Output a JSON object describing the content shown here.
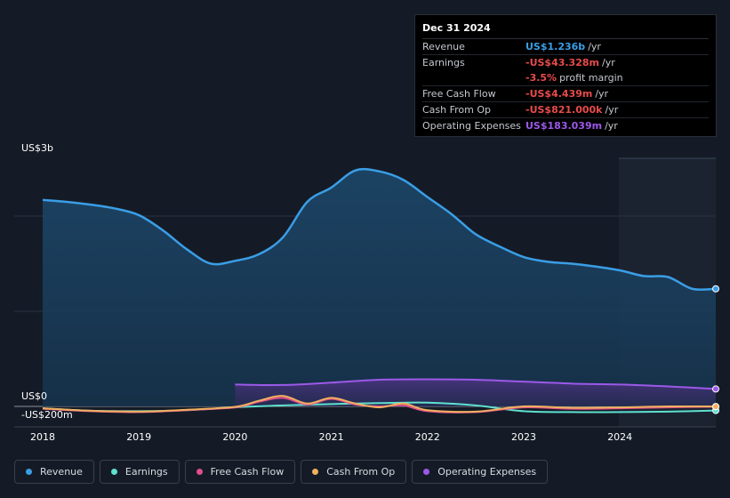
{
  "tooltip": {
    "date": "Dec 31 2024",
    "rows": [
      {
        "label": "Revenue",
        "value": "US$1.236b",
        "unit": "/yr",
        "color": "#3a9ee6"
      },
      {
        "label": "Earnings",
        "value": "-US$43.328m",
        "unit": "/yr",
        "color": "#e84b4b"
      },
      {
        "label": "",
        "value": "-3.5%",
        "unit": "profit margin",
        "color": "#e84b4b"
      },
      {
        "label": "Free Cash Flow",
        "value": "-US$4.439m",
        "unit": "/yr",
        "color": "#e84b4b"
      },
      {
        "label": "Cash From Op",
        "value": "-US$821.000k",
        "unit": "/yr",
        "color": "#e84b4b"
      },
      {
        "label": "Operating Expenses",
        "value": "US$183.039m",
        "unit": "/yr",
        "color": "#9b59e8"
      }
    ]
  },
  "axis": {
    "y_top_label": "US$3b",
    "y_zero_label": "US$0",
    "y_neg_label": "-US$200m"
  },
  "legend": [
    {
      "label": "Revenue",
      "color": "#3a9ee6"
    },
    {
      "label": "Earnings",
      "color": "#5fe0cf"
    },
    {
      "label": "Free Cash Flow",
      "color": "#e0508a"
    },
    {
      "label": "Cash From Op",
      "color": "#f0b060"
    },
    {
      "label": "Operating Expenses",
      "color": "#9b59e8"
    }
  ],
  "chart_data": {
    "type": "area",
    "x_ticks": [
      "2018",
      "2019",
      "2020",
      "2021",
      "2022",
      "2023",
      "2024"
    ],
    "y_unit": "US$ millions",
    "ylim": [
      -200,
      2600
    ],
    "grid": true,
    "series": [
      {
        "name": "Revenue",
        "color": "#3a9ee6",
        "x": [
          2018.0,
          2018.25,
          2018.5,
          2018.75,
          2019.0,
          2019.25,
          2019.5,
          2019.75,
          2020.0,
          2020.25,
          2020.5,
          2020.75,
          2021.0,
          2021.25,
          2021.5,
          2021.75,
          2022.0,
          2022.25,
          2022.5,
          2022.75,
          2023.0,
          2023.25,
          2023.5,
          2023.75,
          2024.0,
          2024.25,
          2024.5,
          2024.75,
          2025.0
        ],
        "y": [
          2170,
          2150,
          2120,
          2080,
          2010,
          1850,
          1650,
          1500,
          1530,
          1600,
          1780,
          2150,
          2300,
          2480,
          2470,
          2380,
          2200,
          2020,
          1810,
          1680,
          1570,
          1520,
          1500,
          1470,
          1430,
          1370,
          1360,
          1236,
          1236
        ]
      },
      {
        "name": "Earnings",
        "color": "#5fe0cf",
        "x": [
          2018.0,
          2018.5,
          2019.0,
          2019.5,
          2020.0,
          2020.5,
          2021.0,
          2021.5,
          2022.0,
          2022.5,
          2023.0,
          2023.5,
          2024.0,
          2024.5,
          2025.0
        ],
        "y": [
          -20,
          -45,
          -50,
          -40,
          -10,
          10,
          25,
          35,
          40,
          10,
          -50,
          -60,
          -60,
          -55,
          -43
        ]
      },
      {
        "name": "Free Cash Flow",
        "color": "#e0508a",
        "x": [
          2018.0,
          2018.5,
          2019.0,
          2019.5,
          2020.0,
          2020.25,
          2020.5,
          2020.75,
          2021.0,
          2021.25,
          2021.5,
          2021.75,
          2022.0,
          2022.5,
          2023.0,
          2023.5,
          2024.0,
          2024.5,
          2025.0
        ],
        "y": [
          -25,
          -50,
          -60,
          -40,
          -10,
          50,
          90,
          20,
          80,
          20,
          0,
          10,
          -50,
          -60,
          -10,
          -25,
          -20,
          -10,
          -4
        ]
      },
      {
        "name": "Cash From Op",
        "color": "#f0b060",
        "x": [
          2018.0,
          2018.5,
          2019.0,
          2019.5,
          2020.0,
          2020.25,
          2020.5,
          2020.75,
          2021.0,
          2021.25,
          2021.5,
          2021.75,
          2022.0,
          2022.5,
          2023.0,
          2023.5,
          2024.0,
          2024.5,
          2025.0
        ],
        "y": [
          -20,
          -45,
          -55,
          -35,
          -5,
          60,
          110,
          30,
          90,
          30,
          -10,
          30,
          -40,
          -55,
          0,
          -15,
          -10,
          0,
          -1
        ]
      },
      {
        "name": "Operating Expenses",
        "color": "#9b59e8",
        "x": [
          2020.0,
          2020.5,
          2021.0,
          2021.5,
          2022.0,
          2022.5,
          2023.0,
          2023.5,
          2024.0,
          2024.5,
          2025.0
        ],
        "y": [
          230,
          225,
          250,
          280,
          285,
          280,
          260,
          240,
          230,
          210,
          183
        ]
      }
    ]
  }
}
